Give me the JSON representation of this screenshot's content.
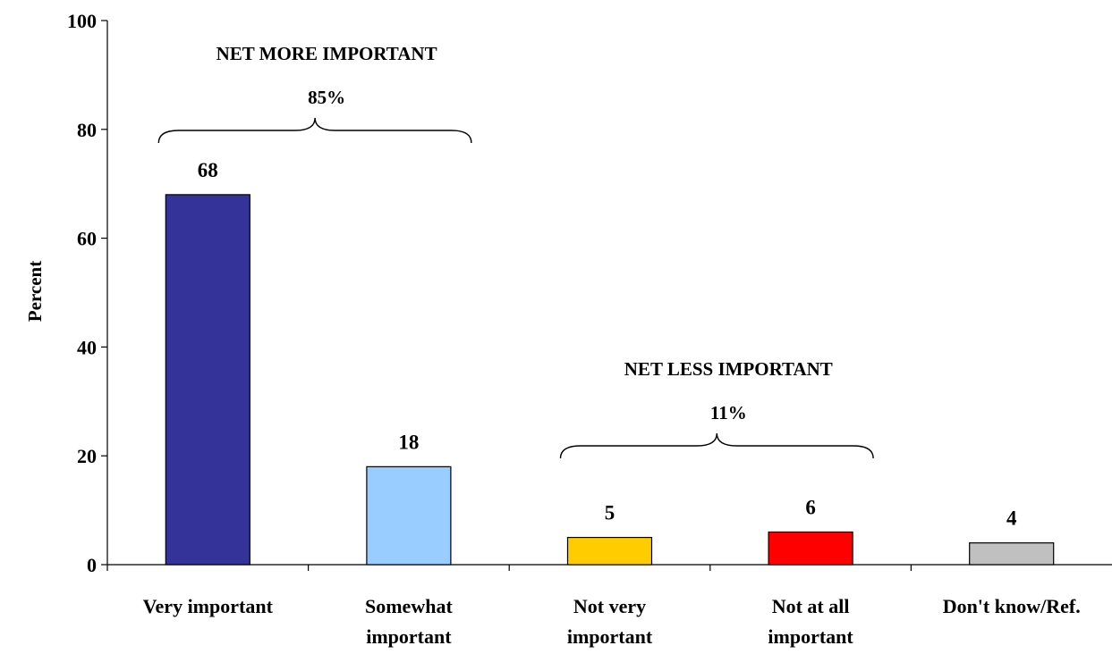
{
  "chart_data": {
    "type": "bar",
    "categories": [
      [
        "Very important"
      ],
      [
        "Somewhat",
        "important"
      ],
      [
        "Not very",
        "important"
      ],
      [
        "Not at all",
        "important"
      ],
      [
        "Don't know/Ref."
      ]
    ],
    "values": [
      68,
      18,
      5,
      6,
      4
    ],
    "colors": [
      "#333399",
      "#99ccff",
      "#ffcc00",
      "#ff0000",
      "#c0c0c0"
    ],
    "ylabel": "Percent",
    "ylim": [
      0,
      100
    ],
    "yticks": [
      0,
      20,
      40,
      60,
      80,
      100
    ],
    "grid": false,
    "annotations": [
      {
        "label": "NET MORE IMPORTANT",
        "value": "85%",
        "spans": [
          0,
          1
        ]
      },
      {
        "label": "NET LESS IMPORTANT",
        "value": "11%",
        "spans": [
          2,
          3
        ]
      }
    ]
  }
}
